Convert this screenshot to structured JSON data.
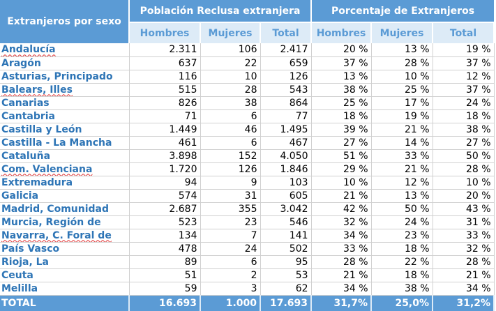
{
  "header": {
    "corner": "Extranjeros por sexo",
    "group1": "Población Reclusa extranjera",
    "group2": "Porcentaje de Extranjeros",
    "sub": [
      "Hombres",
      "Mujeres",
      "Total",
      "Hombres",
      "Mujeres",
      "Total"
    ]
  },
  "rows": [
    {
      "name": "Andalucía",
      "h": "2.311",
      "m": "106",
      "t": "2.417",
      "ph": "20 %",
      "pm": "13 %",
      "pt": "19 %"
    },
    {
      "name": "Aragón",
      "h": "637",
      "m": "22",
      "t": "659",
      "ph": "37 %",
      "pm": "28 %",
      "pt": "37 %"
    },
    {
      "name": "Asturias, Principado",
      "h": "116",
      "m": "10",
      "t": "126",
      "ph": "13 %",
      "pm": "10 %",
      "pt": "12 %"
    },
    {
      "name": "Balears, Illes",
      "h": "515",
      "m": "28",
      "t": "543",
      "ph": "38 %",
      "pm": "25 %",
      "pt": "37 %"
    },
    {
      "name": "Canarias",
      "h": "826",
      "m": "38",
      "t": "864",
      "ph": "25 %",
      "pm": "17 %",
      "pt": "24 %"
    },
    {
      "name": "Cantabria",
      "h": "71",
      "m": "6",
      "t": "77",
      "ph": "18 %",
      "pm": "19 %",
      "pt": "18 %"
    },
    {
      "name": "Castilla y León",
      "h": "1.449",
      "m": "46",
      "t": "1.495",
      "ph": "39 %",
      "pm": "21 %",
      "pt": "38 %"
    },
    {
      "name": "Castilla - La Mancha",
      "h": "461",
      "m": "6",
      "t": "467",
      "ph": "27 %",
      "pm": "14 %",
      "pt": "27 %"
    },
    {
      "name": "Cataluña",
      "h": "3.898",
      "m": "152",
      "t": "4.050",
      "ph": "51 %",
      "pm": "33 %",
      "pt": "50 %"
    },
    {
      "name": "Com. Valenciana",
      "h": "1.720",
      "m": "126",
      "t": "1.846",
      "ph": "29 %",
      "pm": "21 %",
      "pt": "28 %"
    },
    {
      "name": "Extremadura",
      "h": "94",
      "m": "9",
      "t": "103",
      "ph": "10 %",
      "pm": "12 %",
      "pt": "10 %"
    },
    {
      "name": "Galicia",
      "h": "574",
      "m": "31",
      "t": "605",
      "ph": "21 %",
      "pm": "13 %",
      "pt": "20 %"
    },
    {
      "name": "Madrid, Comunidad",
      "h": "2.687",
      "m": "355",
      "t": "3.042",
      "ph": "42 %",
      "pm": "50 %",
      "pt": "43 %"
    },
    {
      "name": "Murcia, Región de",
      "h": "523",
      "m": "23",
      "t": "546",
      "ph": "32 %",
      "pm": "24 %",
      "pt": "31 %"
    },
    {
      "name": "Navarra, C. Foral de",
      "h": "134",
      "m": "7",
      "t": "141",
      "ph": "34 %",
      "pm": "23 %",
      "pt": "33 %"
    },
    {
      "name": "País Vasco",
      "h": "478",
      "m": "24",
      "t": "502",
      "ph": "33 %",
      "pm": "18 %",
      "pt": "32 %"
    },
    {
      "name": "Rioja, La",
      "h": "89",
      "m": "6",
      "t": "95",
      "ph": "28 %",
      "pm": "22 %",
      "pt": "28 %"
    },
    {
      "name": "Ceuta",
      "h": "51",
      "m": "2",
      "t": "53",
      "ph": "21 %",
      "pm": "18 %",
      "pt": "21 %"
    },
    {
      "name": "Melilla",
      "h": "59",
      "m": "3",
      "t": "62",
      "ph": "34 %",
      "pm": "38 %",
      "pt": "34 %"
    }
  ],
  "total": {
    "name": "TOTAL",
    "h": "16.693",
    "m": "1.000",
    "t": "17.693",
    "ph": "31,7%",
    "pm": "25,0%",
    "pt": "31,2%"
  },
  "colors": {
    "header_bg": "#5b9bd5",
    "subheader_bg": "#ddebf7",
    "name_text": "#2e75b6"
  }
}
